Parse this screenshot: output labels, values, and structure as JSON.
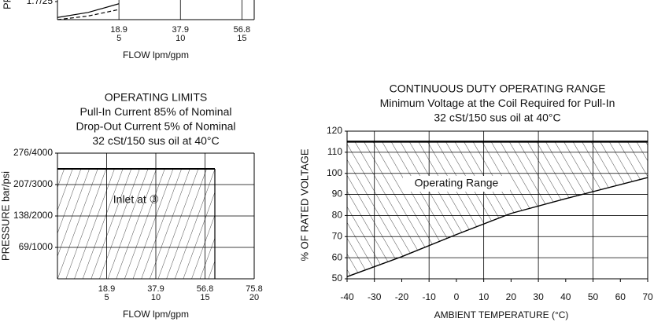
{
  "chart_data": [
    {
      "type": "line",
      "ylabel": "PRE",
      "xlabel": "FLOW lpm/gpm",
      "xlim": [
        0,
        16
      ],
      "xticks": [
        5,
        10,
        15
      ],
      "xtick_lpm_labels": [
        "18.9",
        "37.9",
        "56.8"
      ],
      "ylim": [
        0,
        25
      ],
      "yticks": [
        {
          "value": 25,
          "label": "1.7/25"
        }
      ],
      "grid": true,
      "series": [
        {
          "dash": false,
          "x": [
            0,
            2.5,
            5
          ],
          "values": [
            3,
            10,
            22
          ]
        },
        {
          "dash": true,
          "x": [
            0,
            2.5,
            5
          ],
          "values": [
            0,
            5,
            14
          ]
        }
      ]
    },
    {
      "type": "region",
      "title": "OPERATING LIMITS",
      "subtitles": [
        "Pull-In Current 85% of Nominal",
        "Drop-Out Current 5% of Nominal",
        "32 cSt/150 sus oil at 40°C"
      ],
      "ylabel": "PRESSURE bar/psi",
      "xlabel": "FLOW lpm/gpm",
      "xlim": [
        0,
        20
      ],
      "xticks": [
        5,
        10,
        15,
        20
      ],
      "xtick_lpm_labels": [
        "18.9",
        "37.9",
        "56.8",
        "75.8"
      ],
      "ylim": [
        0,
        4000
      ],
      "yticks": [
        {
          "value": 1000,
          "label": "69/1000"
        },
        {
          "value": 2000,
          "label": "138/2000"
        },
        {
          "value": 3000,
          "label": "207/3000"
        },
        {
          "value": 4000,
          "label": "276/4000"
        }
      ],
      "grid": true,
      "limit_flow": 16,
      "limit_pressure": 3500,
      "annotation": "Inlet at ③"
    },
    {
      "type": "range",
      "title": "CONTINUOUS DUTY OPERATING RANGE",
      "subtitles": [
        "Minimum Voltage at the Coil Required for Pull-In",
        "32 cSt/150 sus oil at 40°C"
      ],
      "ylabel": "% OF RATED VOLTAGE",
      "xlabel": "AMBIENT TEMPERATURE (°C)",
      "xlim": [
        -40,
        70
      ],
      "xticks": [
        -40,
        -30,
        -20,
        -10,
        0,
        10,
        20,
        30,
        40,
        50,
        60,
        70
      ],
      "ylim": [
        50,
        120
      ],
      "yticks": [
        50,
        60,
        70,
        80,
        90,
        100,
        110,
        120
      ],
      "grid": true,
      "upper_limit": 115,
      "annotation": "Operating Range",
      "x": [
        -40,
        -20,
        0,
        20,
        40,
        70
      ],
      "values": [
        51,
        60.5,
        71,
        81,
        88,
        98
      ]
    }
  ]
}
